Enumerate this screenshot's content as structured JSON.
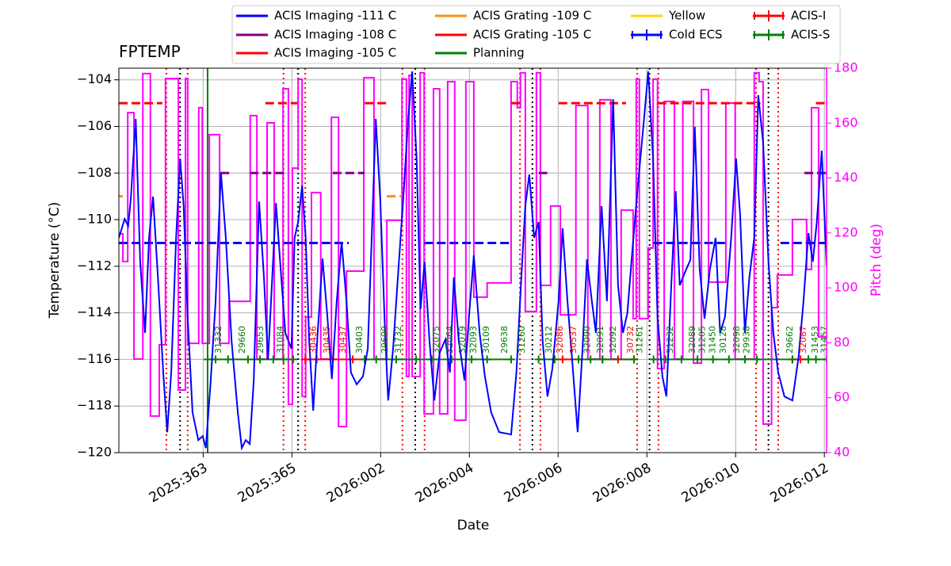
{
  "chart_data": {
    "type": "line",
    "title": "FPTEMP",
    "xlabel": "Date",
    "ylabel": "Temperature (°C)",
    "y2label": "Pitch (deg)",
    "y2color": "#ff00ff",
    "grid": true,
    "xlim": [
      361.1,
      377.05
    ],
    "xticks": [
      {
        "value": 363,
        "label": "2025:363"
      },
      {
        "value": 365,
        "label": "2025:365"
      },
      {
        "value": 367,
        "label": "2026:002"
      },
      {
        "value": 369,
        "label": "2026:004"
      },
      {
        "value": 371,
        "label": "2026:006"
      },
      {
        "value": 373,
        "label": "2026:008"
      },
      {
        "value": 375,
        "label": "2026:010"
      },
      {
        "value": 377,
        "label": "2026:012"
      }
    ],
    "ylim": [
      -120,
      -103.5
    ],
    "yticks": [
      {
        "value": -120,
        "label": "−120"
      },
      {
        "value": -118,
        "label": "−118"
      },
      {
        "value": -116,
        "label": "−116"
      },
      {
        "value": -114,
        "label": "−114"
      },
      {
        "value": -112,
        "label": "−112"
      },
      {
        "value": -110,
        "label": "−110"
      },
      {
        "value": -108,
        "label": "−108"
      },
      {
        "value": -106,
        "label": "−106"
      },
      {
        "value": -104,
        "label": "−104"
      }
    ],
    "y2lim": [
      40,
      180
    ],
    "y2ticks": [
      40,
      60,
      80,
      100,
      120,
      140,
      160,
      180
    ],
    "series": [
      {
        "name": "ACIS Imaging -111 C",
        "color": "#0000ff",
        "linestyle": "dashed",
        "x": [
          361.1,
          366.28,
          366.5,
          367.98,
          369.94,
          371.5,
          373.15,
          374.76,
          375.5,
          376.01,
          377.05
        ],
        "values": [
          -111,
          -111,
          null,
          -111,
          -111,
          null,
          -111,
          -111,
          null,
          -111,
          -111
        ]
      },
      {
        "name": "ACIS Imaging -108 C",
        "color": "#800080",
        "linestyle": "dashed",
        "x": [
          363.39,
          363.6,
          363.8,
          364.05,
          364.85,
          365.5,
          365.92,
          366.64,
          368.5,
          370.56,
          370.83,
          374.0,
          376.55,
          377.05
        ],
        "values": [
          -108,
          -108,
          null,
          -108,
          -108,
          null,
          -108,
          -108,
          null,
          -108,
          -108,
          null,
          -108,
          -108
        ]
      },
      {
        "name": "ACIS Imaging -105 C",
        "color": "#ff0000",
        "linestyle": "dashed",
        "x": [
          361.1,
          362.08,
          363.0,
          364.4,
          365.12,
          366.0,
          366.64,
          367.14,
          368.5,
          369.94,
          370.21,
          370.6,
          371.01,
          372.53,
          372.9,
          373.24,
          375.56,
          376.2,
          376.81,
          377.05
        ],
        "values": [
          -105,
          -105,
          null,
          -105,
          -105,
          null,
          -105,
          -105,
          null,
          -105,
          -105,
          null,
          -105,
          -105,
          null,
          -105,
          -105,
          null,
          -105,
          -105
        ]
      },
      {
        "name": "ACIS Grating -109 C",
        "color": "#ff8c1a",
        "linestyle": "dashed",
        "x": [
          361.1,
          361.19,
          364.0,
          367.14,
          367.48
        ],
        "values": [
          -109,
          -109,
          null,
          -109,
          -109
        ]
      },
      {
        "name": "ACIS Grating -105 C",
        "color": "#ff0000",
        "linestyle": "solid",
        "x": [],
        "values": []
      },
      {
        "name": "Planning",
        "color": "#008000",
        "linestyle": "solid",
        "vline_x": 363.1,
        "x": [],
        "values": []
      },
      {
        "name": "Yellow",
        "color": "#ffd700",
        "linestyle": "solid",
        "x": [],
        "values": []
      },
      {
        "name": "Cold ECS",
        "color": "#0000ff",
        "linestyle": "solid",
        "marker": "+",
        "x": [],
        "values": []
      },
      {
        "name": "ACIS-I",
        "color": "#ff0000",
        "linestyle": "solid",
        "marker": "+",
        "x": [
          365.3,
          365.56,
          365.92,
          366.37,
          366.64,
          368.0,
          370.92,
          371.1,
          371.46,
          371.7,
          372.0,
          372.35,
          372.71,
          374.5,
          376.28,
          376.46,
          376.64
        ],
        "values": [
          -116,
          -116,
          -116,
          -116,
          -116,
          null,
          -116,
          -116,
          -116,
          null,
          -116,
          -116,
          -116,
          null,
          -116,
          -116,
          -116
        ]
      },
      {
        "name": "ACIS-S",
        "color": "#008000",
        "linestyle": "solid",
        "marker": "+",
        "x": [
          363.1,
          363.28,
          363.56,
          364.01,
          364.28,
          364.58,
          364.81,
          365.03,
          365.8,
          366.64,
          366.9,
          367.35,
          367.8,
          368.15,
          368.6,
          369.05,
          369.4,
          369.94,
          370.2,
          370.56,
          370.92,
          371.2,
          371.46,
          371.73,
          372.0,
          372.71,
          372.9,
          373.15,
          373.42,
          373.78,
          374.14,
          374.49,
          374.85,
          375.21,
          375.48,
          376.28,
          376.5,
          376.64,
          376.81,
          377.05
        ],
        "values": [
          -116,
          -116,
          -116,
          -116,
          -116,
          -116,
          -116,
          -116,
          null,
          -116,
          -116,
          -116,
          -116,
          -116,
          -116,
          -116,
          -116,
          -116,
          null,
          -116,
          -116,
          null,
          -116,
          -116,
          -116,
          -116,
          null,
          -116,
          -116,
          -116,
          -116,
          -116,
          -116,
          -116,
          -116,
          -116,
          null,
          -116,
          -116,
          -116
        ]
      }
    ],
    "temperature": {
      "color": "#0000ff",
      "x": [
        361.1,
        361.23,
        361.31,
        361.37,
        361.48,
        361.58,
        361.69,
        361.78,
        361.87,
        361.98,
        362.1,
        362.19,
        362.28,
        362.39,
        362.48,
        362.56,
        362.65,
        362.76,
        362.89,
        362.99,
        363.06,
        363.17,
        363.28,
        363.4,
        363.51,
        363.64,
        363.78,
        363.87,
        363.96,
        364.05,
        364.14,
        364.26,
        364.37,
        364.46,
        364.53,
        364.64,
        364.76,
        364.85,
        364.99,
        365.06,
        365.14,
        365.23,
        365.31,
        365.39,
        365.48,
        365.58,
        365.69,
        365.8,
        365.9,
        366.01,
        366.12,
        366.23,
        366.33,
        366.46,
        366.6,
        366.71,
        366.78,
        366.89,
        366.99,
        367.1,
        367.17,
        367.28,
        367.4,
        367.51,
        367.62,
        367.71,
        367.81,
        367.9,
        367.99,
        368.1,
        368.21,
        368.33,
        368.46,
        368.56,
        368.65,
        368.76,
        368.89,
        368.99,
        369.1,
        369.23,
        369.35,
        369.49,
        369.67,
        369.94,
        370.06,
        370.17,
        370.26,
        370.35,
        370.46,
        370.56,
        370.65,
        370.76,
        370.87,
        371.01,
        371.1,
        371.21,
        371.31,
        371.44,
        371.55,
        371.65,
        371.76,
        371.85,
        371.98,
        372.1,
        372.24,
        372.35,
        372.46,
        372.56,
        372.67,
        372.8,
        372.92,
        373.03,
        373.14,
        373.24,
        373.35,
        373.44,
        373.55,
        373.65,
        373.74,
        373.87,
        373.98,
        374.08,
        374.19,
        374.3,
        374.42,
        374.55,
        374.65,
        374.76,
        374.9,
        375.01,
        375.1,
        375.21,
        375.31,
        375.42,
        375.51,
        375.62,
        375.74,
        375.85,
        375.96,
        376.1,
        376.28,
        376.42,
        376.53,
        376.64,
        376.74,
        376.83,
        376.94,
        377.05
      ],
      "values": [
        -110.78,
        -109.97,
        -110.27,
        -109.08,
        -105.68,
        -111.8,
        -114.86,
        -110.78,
        -109.01,
        -112.48,
        -116.56,
        -119.12,
        -116.56,
        -110.78,
        -107.38,
        -109.42,
        -114.18,
        -118.27,
        -119.46,
        -119.29,
        -119.8,
        -116.9,
        -113.5,
        -107.98,
        -110.78,
        -115.2,
        -118.27,
        -119.8,
        -119.46,
        -119.63,
        -116.9,
        -109.22,
        -112.48,
        -116.02,
        -113.5,
        -109.29,
        -112.48,
        -114.86,
        -115.54,
        -110.78,
        -110.1,
        -108.54,
        -110.78,
        -115.2,
        -118.2,
        -114.86,
        -111.67,
        -114.18,
        -116.84,
        -113.5,
        -110.95,
        -113.5,
        -116.56,
        -117.07,
        -116.73,
        -115.54,
        -111.8,
        -105.68,
        -109.08,
        -114.86,
        -117.76,
        -115.54,
        -112.14,
        -109.08,
        -105.68,
        -103.64,
        -107.38,
        -113.84,
        -111.8,
        -115.2,
        -117.76,
        -115.71,
        -115.14,
        -116.56,
        -112.48,
        -115.2,
        -116.9,
        -114.18,
        -111.53,
        -114.86,
        -116.73,
        -118.27,
        -119.12,
        -119.22,
        -116.56,
        -112.48,
        -109.42,
        -108.06,
        -110.78,
        -110.1,
        -115.2,
        -117.59,
        -116.39,
        -113.5,
        -110.37,
        -113.5,
        -115.88,
        -119.12,
        -115.54,
        -111.7,
        -113.5,
        -114.86,
        -109.42,
        -113.5,
        -104.83,
        -112.82,
        -114.86,
        -114.01,
        -111.39,
        -108.47,
        -106.02,
        -103.64,
        -107.38,
        -114.18,
        -116.73,
        -117.59,
        -112.82,
        -108.78,
        -112.82,
        -112.21,
        -111.73,
        -106.02,
        -112.14,
        -114.25,
        -112.14,
        -110.78,
        -114.86,
        -114.18,
        -110.78,
        -107.38,
        -109.76,
        -114.86,
        -112.48,
        -110.78,
        -104.66,
        -106.7,
        -111.8,
        -114.86,
        -116.56,
        -117.59,
        -117.76,
        -115.88,
        -113.5,
        -110.58,
        -111.8,
        -110.1,
        -107.04,
        -111.97
      ]
    },
    "pitch": {
      "color": "#ff00ff",
      "axis": "y2",
      "drawstyle": "steps-post",
      "x": [
        361.1,
        361.19,
        361.3,
        361.44,
        361.64,
        361.81,
        362.01,
        362.15,
        362.44,
        362.6,
        362.65,
        362.9,
        362.98,
        363.14,
        363.37,
        363.58,
        364.06,
        364.21,
        364.44,
        364.6,
        364.8,
        364.92,
        365.01,
        365.14,
        365.23,
        365.31,
        365.44,
        365.65,
        365.89,
        366.05,
        366.23,
        366.62,
        366.85,
        367.14,
        367.48,
        367.58,
        367.64,
        367.71,
        367.89,
        367.98,
        368.19,
        368.33,
        368.51,
        368.67,
        368.92,
        369.1,
        369.4,
        369.94,
        370.08,
        370.15,
        370.26,
        370.51,
        370.6,
        370.83,
        371.05,
        371.4,
        371.67,
        371.94,
        372.19,
        372.42,
        372.69,
        372.76,
        372.83,
        373.03,
        373.14,
        373.24,
        373.39,
        373.62,
        373.81,
        374.05,
        374.23,
        374.39,
        374.78,
        374.99,
        375.42,
        375.53,
        375.62,
        375.81,
        375.94,
        376.28,
        376.6,
        376.71,
        376.87
      ],
      "values": [
        119.7,
        109.6,
        163.8,
        74.1,
        178.0,
        53.3,
        79.3,
        176.2,
        62.8,
        176.2,
        79.8,
        165.6,
        79.8,
        155.8,
        79.8,
        95.1,
        162.7,
        74.1,
        160.1,
        74.1,
        172.5,
        57.6,
        143.6,
        176.0,
        60.5,
        89.4,
        134.7,
        74.1,
        162.1,
        49.5,
        106.1,
        176.5,
        74.1,
        124.6,
        176.0,
        67.7,
        177.4,
        67.7,
        178.3,
        54.1,
        172.5,
        54.1,
        175.1,
        51.8,
        175.1,
        96.6,
        101.8,
        175.1,
        165.6,
        178.3,
        91.4,
        178.3,
        100.9,
        129.8,
        90.2,
        166.4,
        74.1,
        168.5,
        74.1,
        128.3,
        88.8,
        176.0,
        88.8,
        114.5,
        176.0,
        70.6,
        167.9,
        74.1,
        167.9,
        72.6,
        172.2,
        102.1,
        167.3,
        74.1,
        178.3,
        175.1,
        50.4,
        92.8,
        104.7,
        124.9,
        106.7,
        165.6,
        82.1
      ]
    },
    "vlines": [
      {
        "color": "#ff0000",
        "linestyle": "dotted",
        "x": [
          362.17,
          362.65,
          364.81,
          365.3,
          367.49,
          367.99,
          370.14,
          370.6,
          372.78,
          373.26,
          375.46,
          375.96
        ]
      },
      {
        "color": "#000000",
        "linestyle": "dotted",
        "x": [
          362.48,
          365.14,
          367.78,
          370.42,
          373.06,
          375.74
        ]
      }
    ],
    "obsids": [
      {
        "x": 363.33,
        "label": "31332",
        "color": "#008000"
      },
      {
        "x": 363.87,
        "label": "29660",
        "color": "#008000"
      },
      {
        "x": 364.28,
        "label": "29653",
        "color": "#008000"
      },
      {
        "x": 364.73,
        "label": "31084",
        "color": "#008000"
      },
      {
        "x": 365.48,
        "label": "30436",
        "color": "#ff0000"
      },
      {
        "x": 365.78,
        "label": "30435",
        "color": "#ff0000"
      },
      {
        "x": 366.14,
        "label": "30437",
        "color": "#ff0000"
      },
      {
        "x": 366.51,
        "label": "30403",
        "color": "#008000"
      },
      {
        "x": 367.08,
        "label": "29690",
        "color": "#008000"
      },
      {
        "x": 367.39,
        "label": "31732",
        "color": "#008000"
      },
      {
        "x": 368.24,
        "label": "32075",
        "color": "#008000"
      },
      {
        "x": 368.55,
        "label": "32064",
        "color": "#008000"
      },
      {
        "x": 368.83,
        "label": "32079",
        "color": "#008000"
      },
      {
        "x": 369.08,
        "label": "32093",
        "color": "#008000"
      },
      {
        "x": 369.37,
        "label": "30109",
        "color": "#008000"
      },
      {
        "x": 369.78,
        "label": "29638",
        "color": "#008000"
      },
      {
        "x": 370.17,
        "label": "31260",
        "color": "#008000"
      },
      {
        "x": 370.78,
        "label": "30212",
        "color": "#008000"
      },
      {
        "x": 371.03,
        "label": "32086",
        "color": "#ff0000"
      },
      {
        "x": 371.33,
        "label": "30537",
        "color": "#ff0000"
      },
      {
        "x": 371.65,
        "label": "32090",
        "color": "#008000"
      },
      {
        "x": 371.94,
        "label": "32091",
        "color": "#008000"
      },
      {
        "x": 372.23,
        "label": "32092",
        "color": "#008000"
      },
      {
        "x": 372.62,
        "label": "30732",
        "color": "#ff0000"
      },
      {
        "x": 372.83,
        "label": "31261",
        "color": "#008000"
      },
      {
        "x": 373.51,
        "label": "31232",
        "color": "#008000"
      },
      {
        "x": 374.01,
        "label": "32089",
        "color": "#008000"
      },
      {
        "x": 374.24,
        "label": "31205",
        "color": "#008000"
      },
      {
        "x": 374.47,
        "label": "31450",
        "color": "#008000"
      },
      {
        "x": 374.71,
        "label": "30128",
        "color": "#008000"
      },
      {
        "x": 375.01,
        "label": "32098",
        "color": "#008000"
      },
      {
        "x": 375.24,
        "label": "29938",
        "color": "#008000"
      },
      {
        "x": 376.21,
        "label": "29662",
        "color": "#008000"
      },
      {
        "x": 376.51,
        "label": "32087",
        "color": "#ff0000"
      },
      {
        "x": 376.78,
        "label": "31453",
        "color": "#008000"
      },
      {
        "x": 376.99,
        "label": "31457",
        "color": "#008000"
      }
    ]
  }
}
